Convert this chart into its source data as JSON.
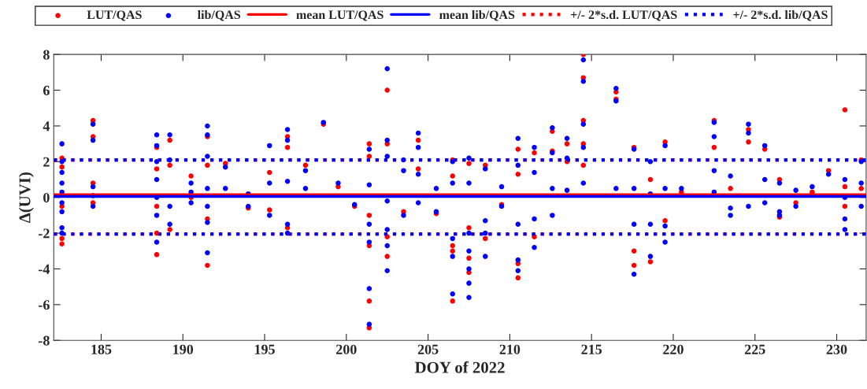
{
  "chart_data": {
    "type": "scatter",
    "xlabel": "DOY of 2022",
    "ylabel": "Δ(UVI)",
    "xlim": [
      182.1,
      231.8
    ],
    "ylim": [
      -8,
      8
    ],
    "xticks": [
      185,
      190,
      195,
      200,
      205,
      210,
      215,
      220,
      225,
      230
    ],
    "yticks": [
      -8,
      -6,
      -4,
      -2,
      0,
      2,
      4,
      6,
      8
    ],
    "legend": "top",
    "marker": "circle",
    "grid": false,
    "series": [
      {
        "name": "LUT/QAS",
        "color": "#ff0000",
        "x": [
          182.6,
          182.6,
          182.6,
          182.6,
          182.6,
          184.5,
          184.5,
          184.5,
          184.5,
          188.4,
          188.4,
          188.4,
          188.4,
          188.4,
          189.2,
          189.2,
          189.2,
          190.5,
          190.5,
          191.5,
          191.5,
          191.5,
          191.5,
          192.6,
          194,
          195.3,
          195.3,
          196.4,
          196.4,
          196.4,
          197.5,
          198.6,
          199.5,
          200.5,
          201.4,
          201.4,
          201.4,
          201.4,
          201.4,
          201.4,
          202.5,
          202.5,
          202.5,
          202.5,
          203.5,
          204.4,
          204.4,
          205.5,
          206.5,
          206.5,
          206.5,
          206.5,
          206.5,
          207.5,
          207.5,
          207.5,
          207.5,
          208.5,
          208.5,
          209.5,
          210.5,
          210.5,
          210.5,
          210.5,
          211.5,
          211.5,
          212.6,
          212.6,
          213.5,
          213.5,
          214.5,
          214.5,
          214.5,
          214.5,
          214.5,
          216.5,
          216.5,
          217.6,
          217.6,
          217.6,
          218.6,
          218.6,
          219.5,
          219.5,
          220.5,
          222.5,
          222.5,
          223.5,
          224.6,
          224.6,
          225.6,
          226.5,
          226.5,
          227.5,
          228.5,
          229.5,
          230.5,
          230.5,
          230.5,
          231.5,
          231.5
        ],
        "values": [
          2.2,
          1.7,
          -0.5,
          -2.3,
          -2.6,
          4.3,
          3.4,
          0.8,
          -0.3,
          2.8,
          1.6,
          -0.5,
          -2.0,
          -3.2,
          3.2,
          1.8,
          -1.8,
          1.2,
          0,
          3.4,
          1.8,
          -1.2,
          -3.8,
          1.9,
          -0.6,
          1.4,
          -0.7,
          3.4,
          2.8,
          -1.7,
          1.8,
          4.1,
          0.6,
          -0.5,
          3.0,
          2.3,
          -1.0,
          -2.7,
          -5.8,
          -7.3,
          6.0,
          3.0,
          -2.2,
          -3.3,
          -0.8,
          3.2,
          1.6,
          -0.9,
          2.1,
          1.2,
          -2.7,
          -3.0,
          -5.8,
          1.9,
          -1.7,
          -3.4,
          -4.2,
          1.8,
          -2.3,
          -0.4,
          2.7,
          1.3,
          -3.7,
          -4.5,
          2.5,
          -2.2,
          3.7,
          2.6,
          3.0,
          2.0,
          8.0,
          6.7,
          4.3,
          3.0,
          1.8,
          5.9,
          5.5,
          2.8,
          -3.0,
          -3.8,
          1.0,
          -3.6,
          3.1,
          -1.3,
          0.3,
          4.3,
          2.8,
          0.5,
          3.8,
          3.1,
          2.7,
          1.0,
          -1.1,
          -0.3,
          0.3,
          1.5,
          4.9,
          0.6,
          -0.5,
          2.1,
          0.5
        ]
      },
      {
        "name": "lib/QAS",
        "color": "#0000ff",
        "x": [
          182.6,
          182.6,
          182.6,
          182.6,
          182.6,
          182.6,
          182.6,
          182.6,
          182.6,
          184.5,
          184.5,
          184.5,
          184.5,
          184.5,
          188.4,
          188.4,
          188.4,
          188.4,
          188.4,
          188.4,
          188.4,
          189.2,
          189.2,
          189.2,
          189.2,
          190.5,
          190.5,
          190.5,
          191.5,
          191.5,
          191.5,
          191.5,
          191.5,
          191.5,
          191.5,
          192.6,
          192.6,
          194,
          194,
          195.3,
          195.3,
          195.3,
          196.4,
          196.4,
          196.4,
          196.4,
          196.4,
          197.5,
          197.5,
          198.6,
          199.5,
          200.5,
          201.4,
          201.4,
          201.4,
          201.4,
          201.4,
          201.4,
          202.5,
          202.5,
          202.5,
          202.5,
          202.5,
          202.5,
          202.5,
          203.5,
          203.5,
          203.5,
          204.4,
          204.4,
          204.4,
          204.4,
          205.5,
          205.5,
          206.5,
          206.5,
          206.5,
          206.5,
          206.5,
          207.5,
          207.5,
          207.5,
          207.5,
          207.5,
          207.5,
          207.5,
          208.5,
          208.5,
          208.5,
          208.5,
          209.5,
          209.5,
          210.5,
          210.5,
          210.5,
          210.5,
          210.5,
          211.5,
          211.5,
          211.5,
          211.5,
          212.6,
          212.6,
          212.6,
          212.6,
          213.5,
          213.5,
          213.5,
          214.5,
          214.5,
          214.5,
          214.5,
          214.5,
          216.5,
          216.5,
          216.5,
          217.6,
          217.6,
          217.6,
          217.6,
          218.6,
          218.6,
          218.6,
          218.6,
          219.5,
          219.5,
          219.5,
          219.5,
          220.5,
          222.5,
          222.5,
          222.5,
          222.5,
          223.5,
          223.5,
          223.5,
          224.6,
          224.6,
          224.6,
          225.6,
          225.6,
          225.6,
          226.5,
          226.5,
          226.5,
          227.5,
          227.5,
          228.5,
          229.5,
          230.5,
          230.5,
          230.5,
          230.5,
          231.5,
          231.5,
          231.5
        ],
        "values": [
          3.0,
          2.0,
          1.4,
          0.8,
          0.3,
          -0.3,
          -0.8,
          -1.7,
          -2.0,
          4.1,
          3.2,
          0.6,
          0.1,
          -0.5,
          3.5,
          2.9,
          2.0,
          1.0,
          0,
          -1.0,
          -2.5,
          3.5,
          2.1,
          -0.5,
          -1.5,
          0.8,
          0.3,
          -0.3,
          4.0,
          3.5,
          2.3,
          0.5,
          -0.5,
          -1.4,
          -3.1,
          1.7,
          0.5,
          0.2,
          -0.5,
          2.9,
          0.8,
          -1.0,
          3.8,
          3.2,
          0.9,
          -1.5,
          -2.0,
          1.5,
          0.5,
          4.2,
          0.8,
          -0.4,
          2.7,
          0.7,
          -1.5,
          -2.5,
          -5.1,
          -7.1,
          7.2,
          3.2,
          2.3,
          -0.2,
          -1.8,
          -2.7,
          -4.1,
          2.1,
          1.5,
          -1.0,
          3.6,
          2.8,
          1.3,
          -0.3,
          0.5,
          -0.8,
          2.0,
          0.8,
          -2.3,
          -3.3,
          -5.4,
          2.2,
          0.8,
          -2.0,
          -3.0,
          -4.0,
          -4.8,
          -5.6,
          1.6,
          -1.3,
          -2.0,
          -3.3,
          0.6,
          -0.5,
          3.3,
          1.8,
          -1.5,
          -3.5,
          -4.1,
          2.8,
          1.4,
          -1.2,
          -2.8,
          3.9,
          2.5,
          0.5,
          -1.0,
          3.3,
          2.2,
          0.4,
          7.7,
          6.5,
          4.1,
          2.8,
          0.8,
          6.1,
          5.4,
          0.5,
          2.7,
          0.5,
          -1.5,
          -4.3,
          2.0,
          0.2,
          -1.5,
          -3.3,
          2.9,
          0.5,
          -1.6,
          -2.5,
          0.5,
          4.2,
          3.4,
          1.5,
          0.3,
          1.2,
          -0.6,
          -1.0,
          4.1,
          3.6,
          -0.5,
          2.9,
          1.0,
          -0.3,
          0.8,
          -0.8,
          -1.0,
          0.4,
          -0.5,
          0.6,
          1.3,
          1.0,
          0,
          -1.2,
          -1.8,
          2.0,
          0.8,
          -0.5
        ]
      }
    ],
    "ref_lines": [
      {
        "axis": "y",
        "value": 0.15,
        "label": "mean LUT/QAS",
        "color": "#ff0000",
        "line_style": "solid"
      },
      {
        "axis": "y",
        "value": 0.05,
        "label": "mean lib/QAS",
        "color": "#0000ff",
        "line_style": "solid"
      },
      {
        "axis": "y",
        "value": 2.1,
        "label": "+/- 2*s.d. LUT/QAS",
        "color": "#ff0000",
        "line_style": "dotted"
      },
      {
        "axis": "y",
        "value": -2.05,
        "color": "#ff0000",
        "line_style": "dotted"
      },
      {
        "axis": "y",
        "value": 2.1,
        "label": "+/- 2*s.d. lib/QAS",
        "color": "#0000ff",
        "line_style": "dotted"
      },
      {
        "axis": "y",
        "value": -2.05,
        "color": "#0000ff",
        "line_style": "dotted"
      }
    ]
  }
}
